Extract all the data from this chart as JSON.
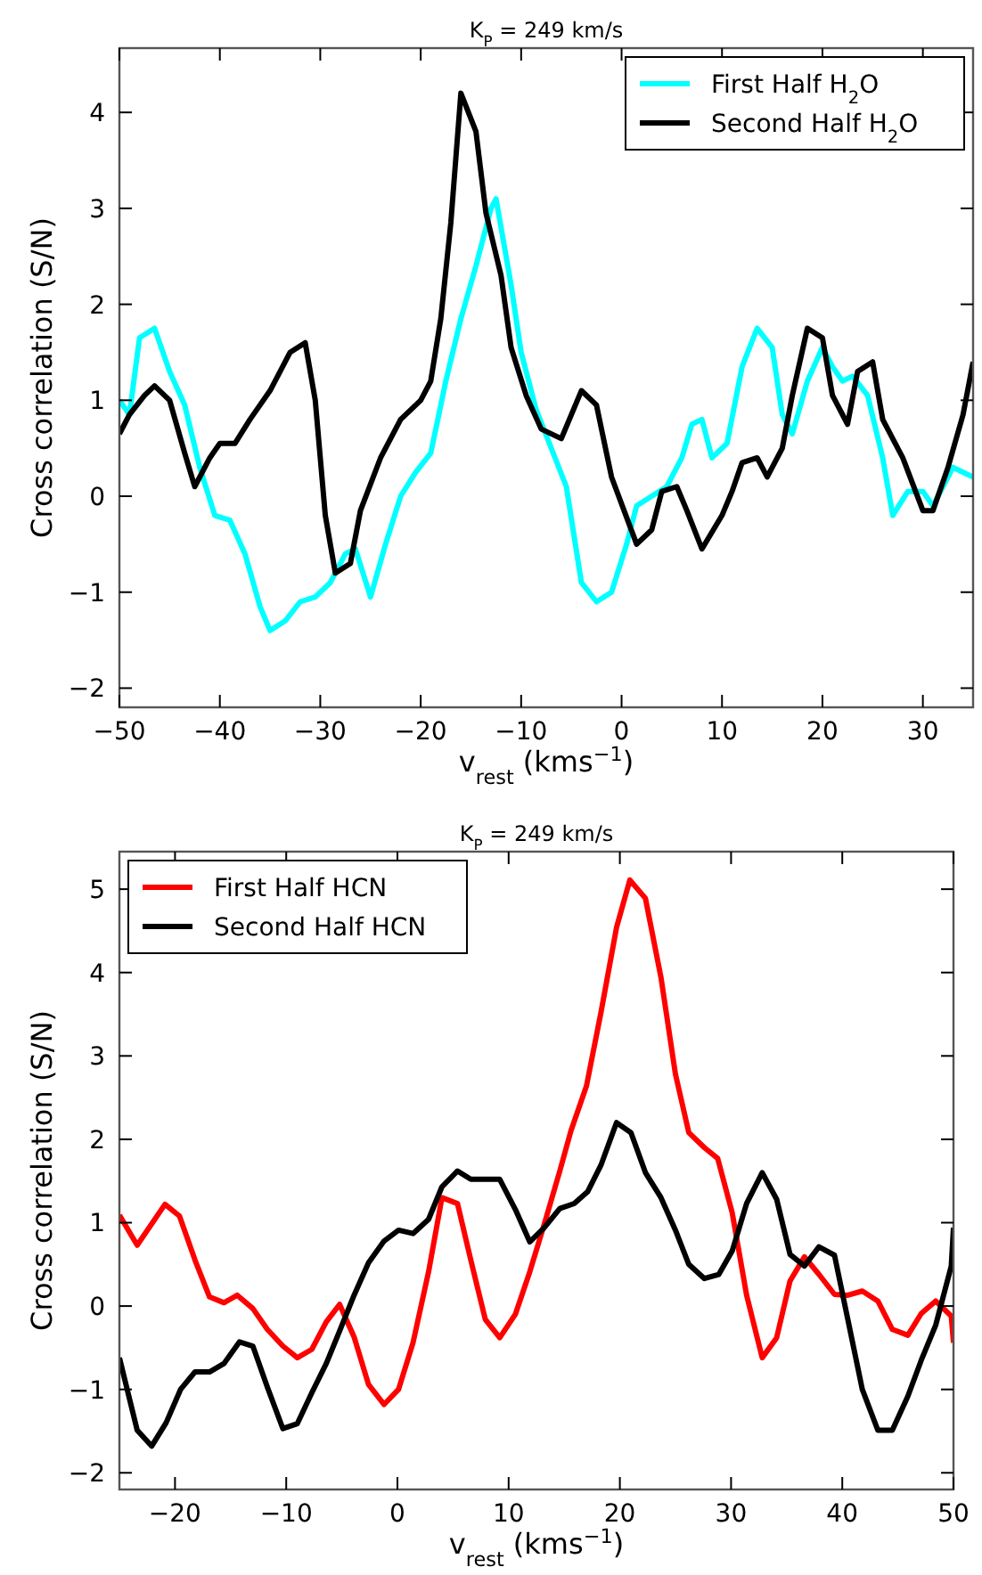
{
  "chart_data": [
    {
      "type": "line",
      "title": "K$_{P}$ = 249 km/s",
      "xlabel": "v$_{rest}$ (kms$^{−1}$)",
      "ylabel": "Cross correlation (S/N)",
      "xlim": [
        -50,
        35
      ],
      "ylim": [
        -2.2,
        4.67
      ],
      "xticks": [
        -50,
        -40,
        -30,
        -20,
        -10,
        0,
        10,
        20,
        30
      ],
      "yticks": [
        -2,
        -1,
        0,
        1,
        2,
        3,
        4
      ],
      "grid": false,
      "legend": "top right",
      "line_style": "solid",
      "series": [
        {
          "name": "First Half H$_{2}$O",
          "color": "#00ffff",
          "x": [
            -50,
            -49,
            -48,
            -46.5,
            -45,
            -43.5,
            -42,
            -40.5,
            -39,
            -37.5,
            -36,
            -35,
            -33.5,
            -32,
            -30.5,
            -29,
            -27.5,
            -26.5,
            -25,
            -23.5,
            -22,
            -20.5,
            -19,
            -17.5,
            -16,
            -14.5,
            -13,
            -12.5,
            -11,
            -10,
            -8.5,
            -7,
            -5.5,
            -4,
            -2.5,
            -1,
            0.5,
            1.5,
            3,
            4.5,
            6,
            7,
            8,
            9,
            10.5,
            12,
            13.5,
            15,
            16,
            17,
            18.5,
            20,
            21,
            22,
            23,
            24.5,
            26,
            27,
            28.5,
            30,
            31,
            32,
            33,
            35
          ],
          "values": [
            1.0,
            0.85,
            1.65,
            1.75,
            1.3,
            0.95,
            0.3,
            -0.2,
            -0.25,
            -0.6,
            -1.15,
            -1.4,
            -1.3,
            -1.1,
            -1.05,
            -0.9,
            -0.6,
            -0.55,
            -1.05,
            -0.5,
            0,
            0.25,
            0.45,
            1.2,
            1.85,
            2.4,
            3.0,
            3.1,
            2.2,
            1.5,
            0.9,
            0.5,
            0.1,
            -0.9,
            -1.1,
            -1.0,
            -0.5,
            -0.1,
            0.0,
            0.1,
            0.4,
            0.75,
            0.8,
            0.4,
            0.55,
            1.35,
            1.75,
            1.55,
            0.85,
            0.65,
            1.2,
            1.55,
            1.35,
            1.2,
            1.25,
            1.05,
            0.4,
            -0.2,
            0.05,
            0.05,
            -0.1,
            0.1,
            0.3,
            0.2
          ]
        },
        {
          "name": "Second Half H$_{2}$O",
          "color": "#000000",
          "x": [
            -50,
            -49,
            -47.5,
            -46.5,
            -45,
            -43.5,
            -42.5,
            -41,
            -40,
            -38.5,
            -37,
            -35,
            -33,
            -31.5,
            -30.5,
            -29.5,
            -28.5,
            -27,
            -26,
            -24,
            -22,
            -20,
            -19,
            -18,
            -17,
            -16,
            -14.5,
            -13.5,
            -12,
            -11,
            -9.5,
            -8,
            -6,
            -4,
            -2.5,
            -1,
            1.5,
            3,
            4,
            5.5,
            6.5,
            8,
            10,
            11,
            12,
            13.5,
            14.5,
            16,
            17,
            18.5,
            20,
            21,
            22.5,
            23.5,
            25,
            26,
            28,
            30,
            31,
            32.5,
            34,
            35
          ],
          "values": [
            0.65,
            0.85,
            1.05,
            1.15,
            1.0,
            0.45,
            0.1,
            0.4,
            0.55,
            0.55,
            0.8,
            1.1,
            1.5,
            1.6,
            1.0,
            -0.2,
            -0.8,
            -0.7,
            -0.15,
            0.4,
            0.8,
            1.0,
            1.2,
            1.85,
            2.85,
            4.2,
            3.8,
            2.95,
            2.3,
            1.55,
            1.05,
            0.7,
            0.6,
            1.1,
            0.95,
            0.2,
            -0.5,
            -0.35,
            0.05,
            0.1,
            -0.15,
            -0.55,
            -0.2,
            0.05,
            0.35,
            0.4,
            0.2,
            0.5,
            1.05,
            1.75,
            1.65,
            1.05,
            0.75,
            1.3,
            1.4,
            0.8,
            0.4,
            -0.15,
            -0.15,
            0.3,
            0.85,
            1.4
          ]
        }
      ]
    },
    {
      "type": "line",
      "title": "K$_{P}$ = 249 km/s",
      "xlabel": "v$_{rest}$ (kms$^{−1}$)",
      "ylabel": "Cross correlation (S/N)",
      "xlim": [
        -25,
        50
      ],
      "ylim": [
        -2.2,
        5.45
      ],
      "xticks": [
        -20,
        -10,
        0,
        10,
        20,
        30,
        40,
        50
      ],
      "yticks": [
        -2,
        -1,
        0,
        1,
        2,
        3,
        4,
        5
      ],
      "grid": false,
      "legend": "top left",
      "line_style": "solid",
      "series": [
        {
          "name": "First Half HCN",
          "color": "#ff0000",
          "x": [
            -25,
            -23.4,
            -20.9,
            -19.6,
            -18.2,
            -16.9,
            -15.6,
            -14.4,
            -13,
            -11.7,
            -10.3,
            -9,
            -7.7,
            -6.4,
            -5.2,
            -3.9,
            -2.6,
            -1.2,
            0.1,
            1.4,
            2.8,
            4.0,
            5.4,
            6.6,
            7.9,
            9.2,
            10.6,
            11.9,
            13.2,
            14.6,
            15.6,
            17.0,
            18.3,
            19.7,
            20.9,
            22.3,
            23.7,
            25.0,
            26.2,
            27.6,
            28.8,
            30.1,
            31.4,
            32.8,
            34.1,
            35.3,
            36.6,
            37.9,
            39.3,
            40.5,
            41.8,
            43.2,
            44.5,
            45.9,
            47.1,
            48.4,
            49.8,
            50
          ],
          "values": [
            1.09,
            0.73,
            1.22,
            1.08,
            0.55,
            0.11,
            0.04,
            0.13,
            -0.03,
            -0.28,
            -0.48,
            -0.62,
            -0.52,
            -0.19,
            0.02,
            -0.37,
            -0.94,
            -1.18,
            -1.0,
            -0.44,
            0.41,
            1.3,
            1.23,
            0.55,
            -0.16,
            -0.38,
            -0.1,
            0.41,
            0.98,
            1.62,
            2.1,
            2.64,
            3.52,
            4.54,
            5.11,
            4.89,
            3.94,
            2.78,
            2.08,
            1.9,
            1.77,
            1.12,
            0.13,
            -0.62,
            -0.38,
            0.3,
            0.59,
            0.38,
            0.14,
            0.13,
            0.18,
            0.06,
            -0.28,
            -0.35,
            -0.09,
            0.06,
            -0.12,
            -0.44
          ]
        },
        {
          "name": "Second Half HCN",
          "color": "#000000",
          "x": [
            -25,
            -23.4,
            -22.1,
            -20.8,
            -19.5,
            -18.2,
            -16.9,
            -15.6,
            -14.2,
            -13,
            -11.7,
            -10.3,
            -9,
            -7.7,
            -6.4,
            -5.2,
            -3.9,
            -2.6,
            -1.2,
            0.1,
            1.4,
            2.8,
            4.0,
            5.4,
            6.6,
            7.9,
            9.2,
            10.6,
            11.9,
            13.2,
            14.6,
            15.9,
            17.1,
            18.3,
            19.7,
            21.0,
            22.3,
            23.7,
            25.0,
            26.2,
            27.6,
            28.9,
            30.1,
            31.4,
            32.8,
            34.1,
            35.3,
            36.6,
            37.9,
            39.3,
            40.5,
            41.8,
            43.2,
            44.5,
            45.9,
            47.1,
            48.4,
            49.8,
            50
          ],
          "values": [
            -0.62,
            -1.49,
            -1.68,
            -1.4,
            -1.0,
            -0.79,
            -0.79,
            -0.69,
            -0.43,
            -0.48,
            -0.97,
            -1.47,
            -1.41,
            -1.04,
            -0.69,
            -0.3,
            0.13,
            0.52,
            0.78,
            0.91,
            0.87,
            1.04,
            1.43,
            1.62,
            1.52,
            1.52,
            1.52,
            1.16,
            0.77,
            0.94,
            1.17,
            1.23,
            1.37,
            1.69,
            2.2,
            2.08,
            1.6,
            1.3,
            0.91,
            0.5,
            0.33,
            0.38,
            0.66,
            1.23,
            1.6,
            1.28,
            0.62,
            0.48,
            0.71,
            0.61,
            -0.16,
            -1.0,
            -1.49,
            -1.49,
            -1.08,
            -0.65,
            -0.23,
            0.48,
            0.94
          ]
        }
      ]
    }
  ]
}
